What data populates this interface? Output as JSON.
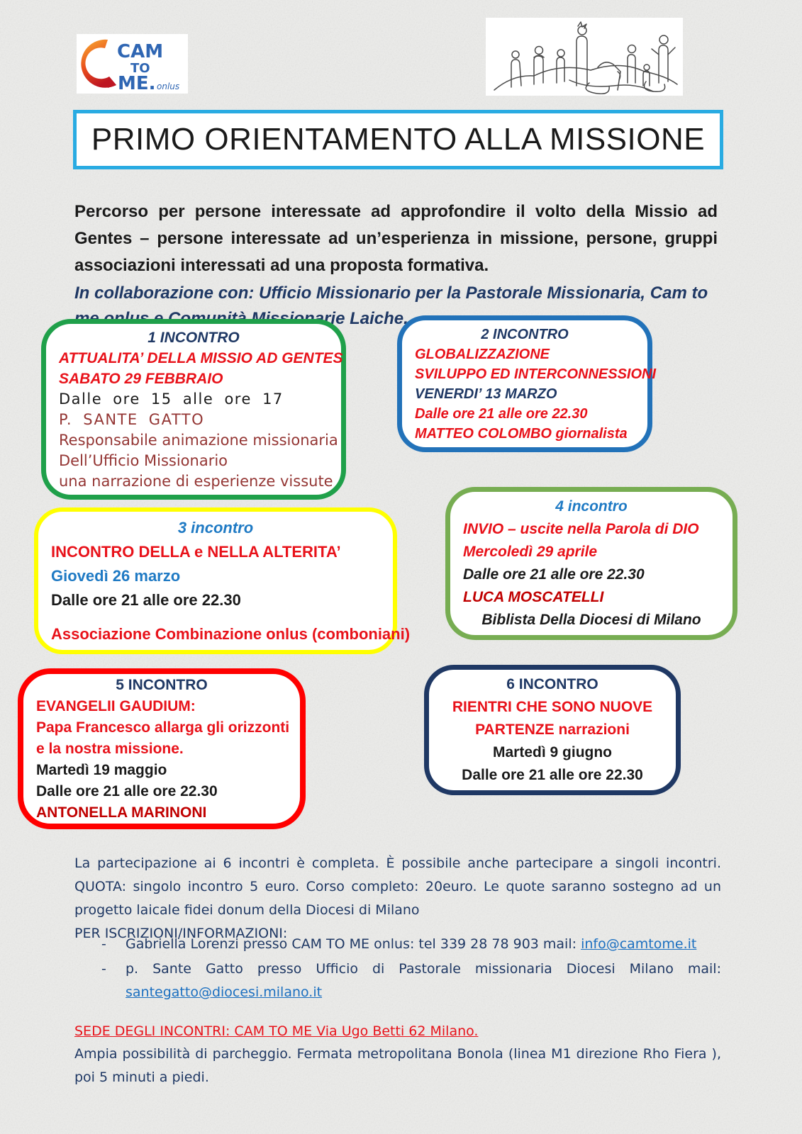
{
  "palette": {
    "navy": "#1F3864",
    "red": "#E8121A",
    "darkred": "#C00000",
    "maroon": "#943634",
    "blue": "#1F7AC4",
    "black": "#1A1A1A",
    "link_blue": "#1B6FC0",
    "title_border": "#29ABE2",
    "logo_blue": "#2F66B3"
  },
  "logo": {
    "word1": "CAM",
    "word2": "TO",
    "word3": "ME.",
    "suffix": "onlus"
  },
  "title": "PRIMO ORIENTAMENTO ALLA MISSIONE",
  "intro": "Percorso per persone interessate ad approfondire il volto della Missio ad Gentes – persone interessate ad un’esperienza in missione, persone, gruppi associazioni interessati ad una proposta formativa.",
  "collaboration": "In collaborazione con: Ufficio Missionario per la Pastorale Missionaria, Cam to me onlus e Comunità Missionarie Laiche.",
  "meetings": [
    {
      "border_color": "#1FA04A",
      "lines": [
        {
          "text": "1 INCONTRO",
          "color": "navy",
          "italic": true,
          "center": true
        },
        {
          "text": "ATTUALITA’ DELLA MISSIO AD GENTES",
          "color": "red",
          "italic": true
        },
        {
          "text": "SABATO 29 FEBBRAIO",
          "color": "red",
          "italic": true
        },
        {
          "text": "Dalle ore 15 alle ore 17",
          "color": "black",
          "comic": true,
          "spread": true
        },
        {
          "text": "P. SANTE GATTO",
          "color": "maroon",
          "comic": true,
          "spread": true
        },
        {
          "text": "Responsabile animazione missionaria",
          "color": "maroon",
          "comic": true
        },
        {
          "text": "Dell’Ufficio Missionario",
          "color": "maroon",
          "comic": true
        },
        {
          "text": "una narrazione di esperienze vissute",
          "color": "maroon",
          "comic": true
        }
      ]
    },
    {
      "border_color": "#2272B9",
      "lines": [
        {
          "text": "2 INCONTRO",
          "color": "navy",
          "italic": true,
          "center": true
        },
        {
          "text": "GLOBALIZZAZIONE",
          "color": "red",
          "italic": true
        },
        {
          "text": "SVILUPPO ED INTERCONNESSIONI",
          "color": "red",
          "italic": true
        },
        {
          "text": "VENERDI’ 13 MARZO",
          "color": "navy",
          "italic": true
        },
        {
          "text": "Dalle ore 21 alle ore 22.30",
          "color": "red",
          "italic": true
        },
        {
          "text": "MATTEO COLOMBO giornalista",
          "color": "red",
          "italic": true
        }
      ]
    },
    {
      "border_color": "#FFFF00",
      "lines": [
        {
          "text": "3 incontro",
          "color": "blue",
          "italic": true,
          "center": true
        },
        {
          "text": "INCONTRO DELLA e NELLA ALTERITA’",
          "color": "red"
        },
        {
          "text": "Giovedì 26 marzo",
          "color": "blue"
        },
        {
          "text": "Dalle ore 21 alle ore 22.30",
          "color": "black"
        },
        {
          "text": "Associazione Combinazione onlus (comboniani)",
          "color": "red",
          "center": true,
          "gap": true
        }
      ]
    },
    {
      "border_color": "#77AD52",
      "lines": [
        {
          "text": "4 incontro",
          "color": "blue",
          "italic": true,
          "center": true
        },
        {
          "text": "INVIO – uscite nella Parola di DIO",
          "color": "red",
          "italic": true
        },
        {
          "text": "Mercoledì 29 aprile",
          "color": "red",
          "italic": true
        },
        {
          "text": "Dalle ore 21 alle ore 22.30",
          "color": "black",
          "italic": true
        },
        {
          "text": "LUCA MOSCATELLI",
          "color": "darkred",
          "italic": true
        },
        {
          "text": "Biblista Della Diocesi di Milano",
          "color": "black",
          "italic": true,
          "center": true
        }
      ]
    },
    {
      "border_color": "#FF0000",
      "lines": [
        {
          "text": "5 INCONTRO",
          "color": "navy",
          "center": true
        },
        {
          "text": "EVANGELII GAUDIUM:",
          "color": "red"
        },
        {
          "text": "Papa Francesco allarga gli orizzonti",
          "color": "red"
        },
        {
          "text": "e la nostra missione.",
          "color": "red"
        },
        {
          "text": "Martedì 19 maggio",
          "color": "black"
        },
        {
          "text": "Dalle ore 21 alle ore 22.30",
          "color": "black"
        },
        {
          "text": "ANTONELLA MARINONI",
          "color": "darkred"
        }
      ]
    },
    {
      "border_color": "#1F3864",
      "lines": [
        {
          "text": "6 INCONTRO",
          "color": "navy",
          "center": true
        },
        {
          "text": "RIENTRI CHE SONO NUOVE",
          "color": "red",
          "center": true
        },
        {
          "text": "PARTENZE narrazioni",
          "color": "red",
          "center": true
        },
        {
          "text": "Martedì 9 giugno",
          "color": "black",
          "center": true
        },
        {
          "text": "Dalle ore 21 alle ore 22.30",
          "color": "black",
          "center": true
        }
      ]
    }
  ],
  "participation": "La partecipazione ai 6 incontri è completa. È possibile anche partecipare a singoli incontri. QUOTA: singolo incontro 5 euro. Corso completo: 20euro. Le quote saranno sostegno ad un progetto laicale fidei donum della Diocesi di Milano",
  "registration": {
    "heading": "PER ISCRIZIONI/INFORMAZIONI:",
    "bullet": "-",
    "items": [
      {
        "text": "Gabriella Lorenzi presso CAM TO ME onlus: tel 339 28 78 903 mail: ",
        "link": "info@camtome.it"
      },
      {
        "text": "p. Sante Gatto presso Ufficio di Pastorale missionaria Diocesi Milano mail: ",
        "link": "santegatto@diocesi.milano.it"
      }
    ]
  },
  "venue": {
    "heading": "SEDE DEGLI INCONTRI: CAM TO ME Via Ugo Betti 62 Milano.",
    "details": "Ampia possibilità di parcheggio.  Fermata metropolitana Bonola (linea M1 direzione Rho Fiera ), poi 5 minuti a piedi."
  }
}
